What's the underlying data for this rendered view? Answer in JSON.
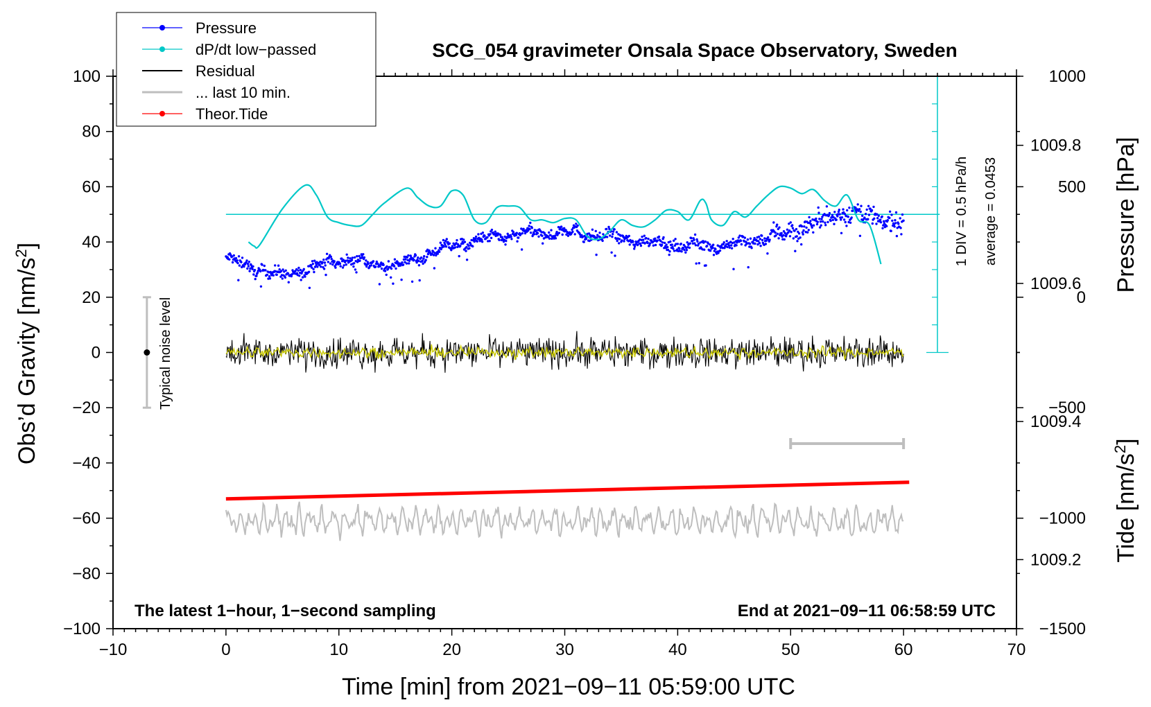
{
  "chart_data": {
    "type": "line",
    "title": "SCG_054 gravimeter Onsala Space Observatory, Sweden",
    "xlabel": "Time [min] from 2021−09−11 05:59:00 UTC",
    "ylabel_left_main": "Obs’d Gravity [nm/s",
    "ylabel_left_sup": "2",
    "ylabel_left_close": "]",
    "ylabel_right_pressure": "Pressure [hPa]",
    "ylabel_right_tide_main": "Tide [nm/s",
    "ylabel_right_tide_sup": "2",
    "ylabel_right_tide_close": "]",
    "xlim": [
      -10,
      70
    ],
    "ylim_left": [
      -100,
      100
    ],
    "x_ticks": [
      "−10",
      "0",
      "10",
      "20",
      "30",
      "40",
      "50",
      "60",
      "70"
    ],
    "y_ticks_left": [
      "100",
      "80",
      "60",
      "40",
      "20",
      "0",
      "−20",
      "−40",
      "−60",
      "−80",
      "−100"
    ],
    "pressure_axis": {
      "range_hpa": [
        1009.1,
        1009.9
      ],
      "ticks": [
        "1009.8",
        "1009.6",
        "1009.4",
        "1009.2"
      ]
    },
    "tide_axis": {
      "range": [
        -1500,
        1000
      ],
      "ticks": [
        "1000",
        "500",
        "0",
        "−500",
        "−1000",
        "−1500"
      ]
    },
    "legend": [
      {
        "label": "Pressure",
        "color": "#0000ff",
        "marker": true
      },
      {
        "label": "dP/dt low−passed",
        "color": "#00c8c8",
        "marker": true
      },
      {
        "label": "Residual",
        "color": "#000000",
        "marker": false
      },
      {
        "label": "... last 10 min.",
        "color": "#bebebe",
        "marker": false
      },
      {
        "label": "Theor.Tide",
        "color": "#ff0000",
        "marker": true
      }
    ],
    "series": [
      {
        "name": "Pressure",
        "unit": "hPa",
        "x": [
          0,
          5,
          10,
          15,
          20,
          25,
          30,
          35,
          40,
          45,
          50,
          55,
          60
        ],
        "values": [
          1009.635,
          1009.61,
          1009.635,
          1009.625,
          1009.655,
          1009.67,
          1009.675,
          1009.665,
          1009.655,
          1009.655,
          1009.675,
          1009.705,
          1009.685
        ]
      },
      {
        "name": "dP/dt low−passed",
        "unit": "nm/s2-plot",
        "x": [
          2,
          2.5,
          3,
          5,
          7,
          8,
          9,
          10,
          11,
          12,
          13,
          14,
          16,
          17,
          18,
          19,
          20,
          21,
          22,
          23,
          24,
          25,
          26,
          27,
          28,
          29,
          30,
          31,
          32,
          33,
          34,
          35,
          36,
          37,
          38,
          39,
          40,
          41,
          42,
          42.5,
          43,
          44,
          45,
          46,
          47,
          48,
          49,
          50,
          51,
          52,
          53,
          54,
          55,
          56,
          57,
          58
        ],
        "values": [
          40,
          38.5,
          39,
          52,
          60.5,
          57,
          49,
          47,
          46,
          46,
          50,
          54,
          59.5,
          56,
          53,
          53,
          58.5,
          57,
          48,
          47,
          52.5,
          53,
          52.5,
          48,
          48,
          47,
          48.5,
          48,
          42,
          41,
          44,
          48,
          46,
          45.5,
          48,
          51.5,
          51,
          48,
          55,
          54,
          48,
          46,
          51,
          49,
          53,
          57,
          60,
          59.5,
          57.5,
          59,
          55,
          53,
          57,
          48,
          46,
          32
        ]
      },
      {
        "name": "Residual",
        "unit": "nm/s2",
        "x_range": [
          0,
          60
        ],
        "center": 0,
        "amplitude_peak": 9
      },
      {
        "name": "Residual (low-passed)",
        "color": "#c8c800",
        "x_range": [
          0,
          60
        ],
        "center": 0,
        "amplitude_peak": 3
      },
      {
        "name": "Theor.Tide",
        "unit": "nm/s2",
        "x": [
          0,
          60.5
        ],
        "values": [
          -53,
          -47
        ]
      },
      {
        "name": "... last 10 min.",
        "x_range": [
          0,
          60
        ],
        "center": -61,
        "amplitude_peak": 7
      }
    ],
    "reference_line_dpdt": 50,
    "dpdt_scale": {
      "label": "1 DIV = 0.5 hPa/h",
      "average": "average = 0.0453"
    },
    "noise_bar": {
      "x": -7,
      "center": 0,
      "half_range": 20,
      "label": "Typical noise level"
    },
    "ten_min_bar": {
      "x_start": 50,
      "x_end": 60,
      "y": -33
    },
    "annotations": {
      "bottom_left": "The latest 1−hour, 1−second sampling",
      "bottom_right": "End at 2021−09−11 06:58:59 UTC"
    }
  }
}
